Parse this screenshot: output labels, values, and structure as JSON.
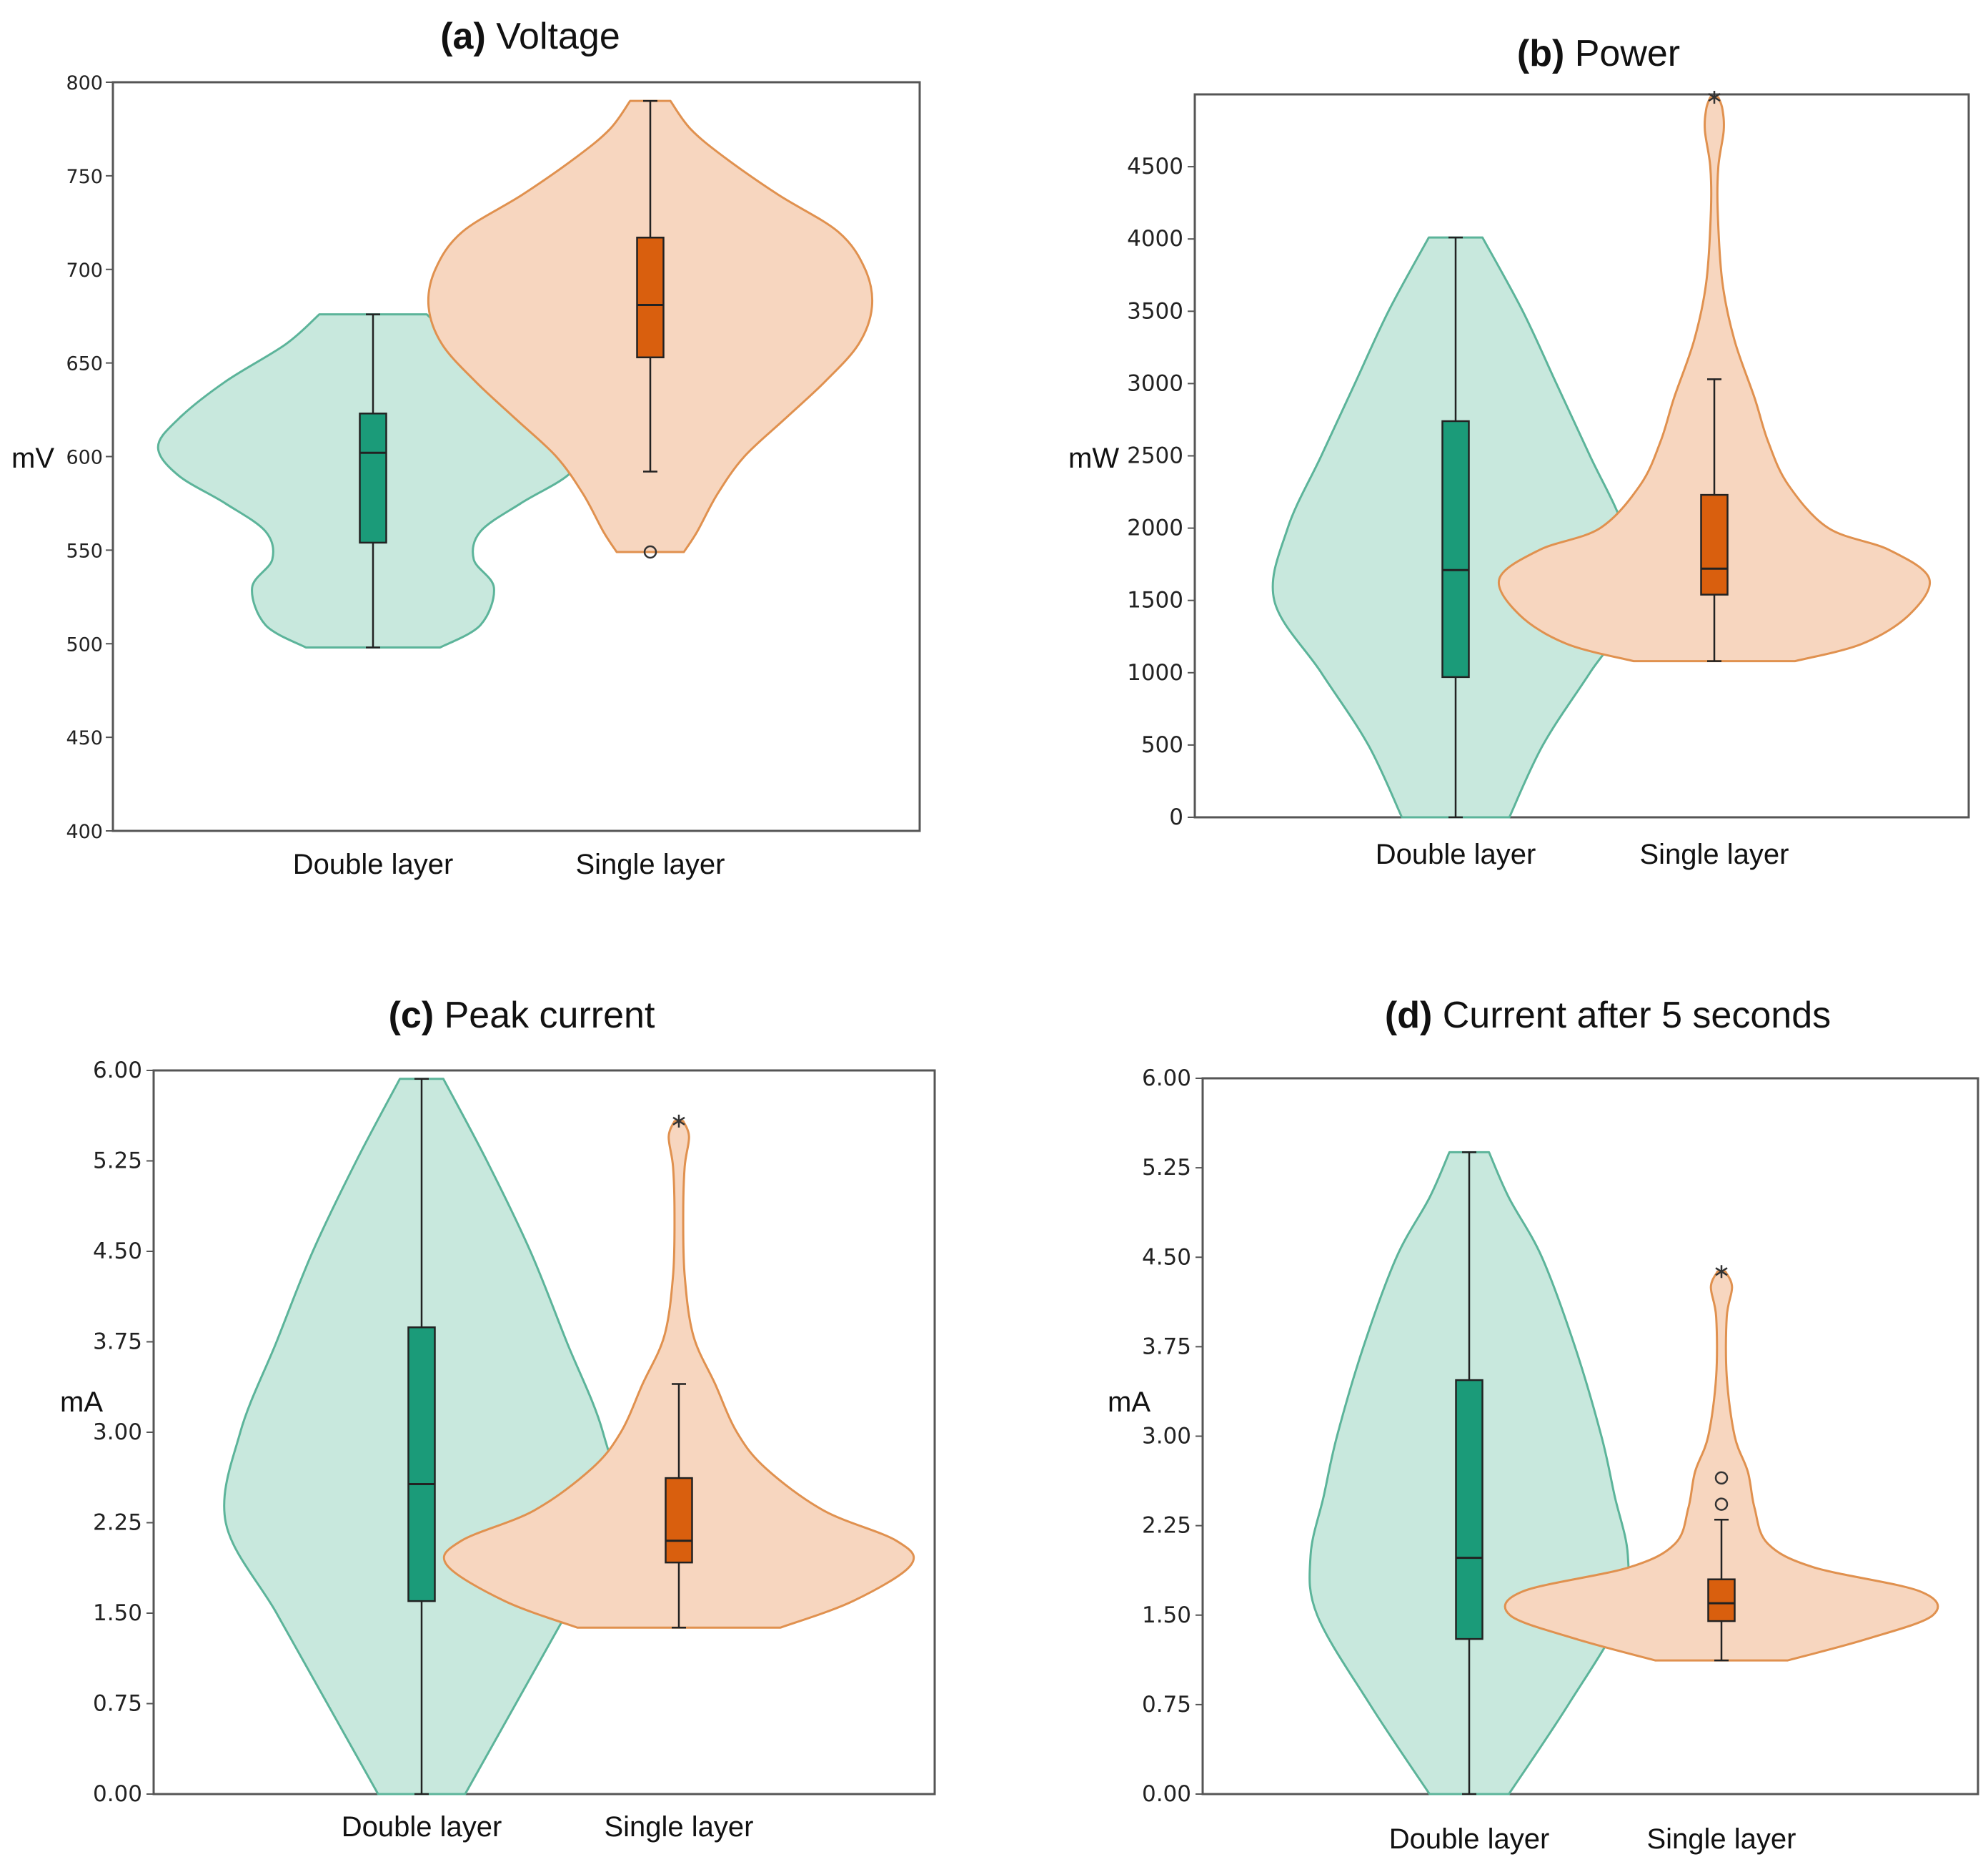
{
  "colors": {
    "double_fill": "#c8e8dd",
    "double_edge": "#5cb49a",
    "double_box": "#1b9b79",
    "single_fill": "#f7d6bf",
    "single_edge": "#e0914f",
    "single_box": "#d95f0e"
  },
  "chart_data": [
    {
      "type": "violin",
      "panel": "(a)",
      "title": "Voltage",
      "ylabel": "mV",
      "ylim": [
        400,
        800
      ],
      "yticks": [
        "400",
        "450",
        "500",
        "550",
        "600",
        "650",
        "700",
        "750",
        "800"
      ],
      "categories": [
        "Double layer",
        "Single layer"
      ],
      "series": [
        {
          "name": "Double layer",
          "min": 498,
          "q1": 554,
          "median": 602,
          "q3": 623,
          "max": 676,
          "outliers": [],
          "extremes": [],
          "density": [
            [
              498,
              5
            ],
            [
              510,
              8
            ],
            [
              530,
              9
            ],
            [
              545,
              7.5
            ],
            [
              560,
              8
            ],
            [
              575,
              11
            ],
            [
              590,
              14.5
            ],
            [
              605,
              16
            ],
            [
              620,
              14.5
            ],
            [
              640,
              11
            ],
            [
              660,
              6.5
            ],
            [
              676,
              4
            ]
          ]
        },
        {
          "name": "Single layer",
          "min": 592,
          "q1": 653,
          "median": 681,
          "q3": 717,
          "max": 790,
          "outliers": [
            549
          ],
          "extremes": [],
          "density": [
            [
              549,
              2.5
            ],
            [
              560,
              3.5
            ],
            [
              580,
              5
            ],
            [
              600,
              7
            ],
            [
              620,
              10
            ],
            [
              640,
              13
            ],
            [
              660,
              15.5
            ],
            [
              680,
              16.5
            ],
            [
              700,
              16
            ],
            [
              720,
              14
            ],
            [
              740,
              9.5
            ],
            [
              760,
              5.5
            ],
            [
              775,
              3
            ],
            [
              790,
              1.5
            ]
          ]
        }
      ]
    },
    {
      "type": "violin",
      "panel": "(b)",
      "title": "Power",
      "ylabel": "mW",
      "ylim": [
        0,
        5000
      ],
      "yticks": [
        "0",
        "500",
        "1000",
        "1500",
        "2000",
        "2500",
        "3000",
        "3500",
        "4000",
        "4500"
      ],
      "categories": [
        "Double layer",
        "Single layer"
      ],
      "series": [
        {
          "name": "Double layer",
          "min": 0,
          "q1": 970,
          "median": 1710,
          "q3": 2740,
          "max": 4010,
          "outliers": [],
          "extremes": [],
          "density": [
            [
              0,
              4
            ],
            [
              500,
              6.5
            ],
            [
              1000,
              10
            ],
            [
              1500,
              13.5
            ],
            [
              2000,
              12.5
            ],
            [
              2500,
              10
            ],
            [
              3000,
              7.5
            ],
            [
              3500,
              5
            ],
            [
              4010,
              2
            ]
          ]
        },
        {
          "name": "Single layer",
          "min": 1080,
          "q1": 1540,
          "median": 1720,
          "q3": 2230,
          "max": 3030,
          "outliers": [],
          "extremes": [
            4980
          ],
          "density": [
            [
              1080,
              6
            ],
            [
              1200,
              11
            ],
            [
              1400,
              14.5
            ],
            [
              1650,
              16
            ],
            [
              1850,
              13
            ],
            [
              2000,
              8.5
            ],
            [
              2300,
              5.5
            ],
            [
              2600,
              4
            ],
            [
              2900,
              3
            ],
            [
              3300,
              1.5
            ],
            [
              3700,
              0.6
            ],
            [
              4200,
              0.25
            ],
            [
              4500,
              0.3
            ],
            [
              4750,
              0.7
            ],
            [
              4900,
              0.6
            ],
            [
              4980,
              0.3
            ]
          ]
        }
      ]
    },
    {
      "type": "violin",
      "panel": "(c)",
      "title": "Peak current",
      "ylabel": "mA",
      "ylim": [
        0,
        6
      ],
      "yticks": [
        "0.00",
        "0.75",
        "1.50",
        "2.25",
        "3.00",
        "3.75",
        "4.50",
        "5.25",
        "6.00"
      ],
      "categories": [
        "Double layer",
        "Single layer"
      ],
      "series": [
        {
          "name": "Double layer",
          "min": 0,
          "q1": 1.6,
          "median": 2.57,
          "q3": 3.87,
          "max": 5.93,
          "outliers": [],
          "extremes": [],
          "density": [
            [
              0,
              3
            ],
            [
              0.75,
              6.5
            ],
            [
              1.5,
              10
            ],
            [
              2.25,
              13.5
            ],
            [
              3.0,
              12.5
            ],
            [
              3.75,
              10
            ],
            [
              4.5,
              7.5
            ],
            [
              5.25,
              4.5
            ],
            [
              5.93,
              1.5
            ]
          ]
        },
        {
          "name": "Single layer",
          "min": 1.38,
          "q1": 1.92,
          "median": 2.1,
          "q3": 2.62,
          "max": 3.4,
          "outliers": [],
          "extremes": [
            5.58
          ],
          "density": [
            [
              1.38,
              7
            ],
            [
              1.6,
              12
            ],
            [
              1.9,
              16
            ],
            [
              2.1,
              15
            ],
            [
              2.35,
              10
            ],
            [
              2.7,
              6
            ],
            [
              3.0,
              4
            ],
            [
              3.4,
              2.5
            ],
            [
              3.8,
              1
            ],
            [
              4.3,
              0.4
            ],
            [
              4.8,
              0.3
            ],
            [
              5.2,
              0.4
            ],
            [
              5.45,
              0.7
            ],
            [
              5.58,
              0.3
            ]
          ]
        }
      ]
    },
    {
      "type": "violin",
      "panel": "(d)",
      "title": "Current after 5 seconds",
      "ylabel": "mA",
      "ylim": [
        0,
        6
      ],
      "yticks": [
        "0.00",
        "0.75",
        "1.50",
        "2.25",
        "3.00",
        "3.75",
        "4.50",
        "5.25",
        "6.00"
      ],
      "categories": [
        "Double layer",
        "Single layer"
      ],
      "series": [
        {
          "name": "Double layer",
          "min": 0,
          "q1": 1.3,
          "median": 1.98,
          "q3": 3.47,
          "max": 5.38,
          "outliers": [],
          "extremes": [],
          "density": [
            [
              0,
              3
            ],
            [
              0.75,
              7.5
            ],
            [
              1.5,
              11.5
            ],
            [
              2.0,
              12
            ],
            [
              2.5,
              11
            ],
            [
              3.0,
              10
            ],
            [
              3.75,
              8
            ],
            [
              4.5,
              5.5
            ],
            [
              5.0,
              3
            ],
            [
              5.38,
              1.5
            ]
          ]
        },
        {
          "name": "Single layer",
          "min": 1.12,
          "q1": 1.45,
          "median": 1.6,
          "q3": 1.8,
          "max": 2.3,
          "outliers": [
            2.43,
            2.65
          ],
          "extremes": [
            4.38
          ],
          "density": [
            [
              1.12,
              5
            ],
            [
              1.3,
              11
            ],
            [
              1.5,
              16
            ],
            [
              1.7,
              15
            ],
            [
              1.9,
              7
            ],
            [
              2.1,
              3.5
            ],
            [
              2.4,
              2.5
            ],
            [
              2.7,
              2.0
            ],
            [
              3.0,
              1.0
            ],
            [
              3.5,
              0.4
            ],
            [
              4.0,
              0.4
            ],
            [
              4.25,
              0.8
            ],
            [
              4.38,
              0.3
            ]
          ]
        }
      ]
    }
  ]
}
